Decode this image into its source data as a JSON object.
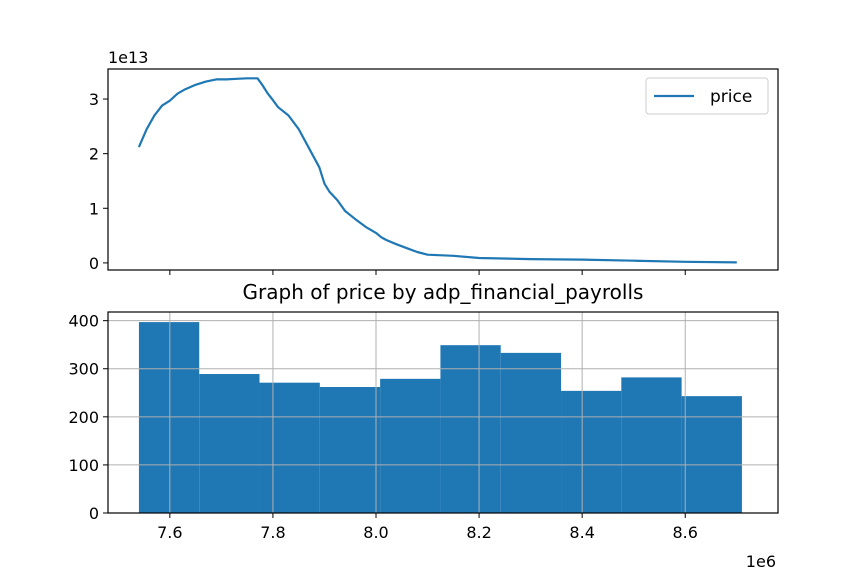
{
  "chart_data": [
    {
      "type": "line",
      "title": "",
      "xlabel": "",
      "ylabel": "",
      "xlim": [
        7480000,
        8780000
      ],
      "ylim": [
        -1300000000000.0,
        35500000000000.0
      ],
      "y_offset_label": "1e13",
      "yticks": [
        0,
        10000000000000.0,
        20000000000000.0,
        30000000000000.0
      ],
      "ytick_labels": [
        "0",
        "1",
        "2",
        "3"
      ],
      "xticks": [
        7600000,
        7800000,
        8000000,
        8200000,
        8400000,
        8600000
      ],
      "show_xtick_labels": false,
      "grid": false,
      "legend": {
        "position": "top-right"
      },
      "series": [
        {
          "name": "price",
          "color": "#1f77b4",
          "x": [
            7540000,
            7555000,
            7570000,
            7585000,
            7600000,
            7615000,
            7630000,
            7650000,
            7670000,
            7690000,
            7710000,
            7730000,
            7750000,
            7770000,
            7780000,
            7790000,
            7800000,
            7810000,
            7830000,
            7850000,
            7870000,
            7890000,
            7900000,
            7910000,
            7925000,
            7940000,
            7960000,
            7980000,
            8000000,
            8010000,
            8020000,
            8040000,
            8060000,
            8080000,
            8100000,
            8150000,
            8200000,
            8300000,
            8400000,
            8500000,
            8600000,
            8700000
          ],
          "y": [
            21200000000000.0,
            24500000000000.0,
            27000000000000.0,
            28800000000000.0,
            29700000000000.0,
            31000000000000.0,
            31800000000000.0,
            32600000000000.0,
            33200000000000.0,
            33600000000000.0,
            33600000000000.0,
            33700000000000.0,
            33800000000000.0,
            33800000000000.0,
            32500000000000.0,
            31000000000000.0,
            29800000000000.0,
            28500000000000.0,
            27000000000000.0,
            24500000000000.0,
            21000000000000.0,
            17500000000000.0,
            14500000000000.0,
            13000000000000.0,
            11500000000000.0,
            9500000000000.0,
            8000000000000.0,
            6600000000000.0,
            5500000000000.0,
            4700000000000.0,
            4200000000000.0,
            3400000000000.0,
            2700000000000.0,
            2000000000000.0,
            1500000000000.0,
            1300000000000.0,
            900000000000.0,
            700000000000.0,
            600000000000.0,
            400000000000.0,
            200000000000.0,
            100000000000.0
          ]
        }
      ]
    },
    {
      "type": "bar",
      "title": "Graph of price by adp_financial_payrolls",
      "xlabel": "",
      "ylabel": "",
      "xlim": [
        7480000,
        8780000
      ],
      "ylim": [
        0,
        418
      ],
      "x_offset_label": "1e6",
      "xticks": [
        7600000,
        7800000,
        8000000,
        8200000,
        8400000,
        8600000
      ],
      "xtick_labels": [
        "7.6",
        "7.8",
        "8.0",
        "8.2",
        "8.4",
        "8.6"
      ],
      "yticks": [
        0,
        100,
        200,
        300,
        400
      ],
      "ytick_labels": [
        "0",
        "100",
        "200",
        "300",
        "400"
      ],
      "grid": true,
      "bar_color": "#1f77b4",
      "bin_edges": [
        7540000,
        7657000,
        7774000,
        7891000,
        8008000,
        8125000,
        8242000,
        8359000,
        8476000,
        8593000,
        8710000
      ],
      "values": [
        397,
        289,
        271,
        262,
        279,
        349,
        333,
        254,
        282,
        243
      ]
    }
  ]
}
